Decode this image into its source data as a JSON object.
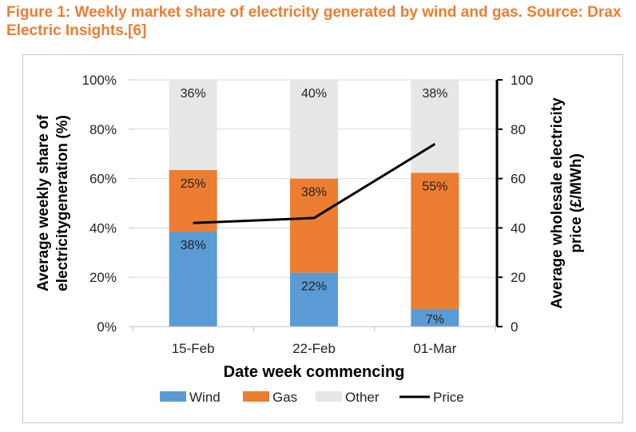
{
  "figure": {
    "title": "Figure 1: Weekly market share of electricity generated by wind and gas. Source: Drax Electric Insights.[6]"
  },
  "colors": {
    "title": "#ED7D31",
    "wind": "#5B9BD5",
    "gas": "#ED7D31",
    "other": "#E7E7E7",
    "price": "#000000",
    "axis": "#000000",
    "grid": "#D9D9D9"
  },
  "chart_data": {
    "type": "bar",
    "stacked": true,
    "categories": [
      "15-Feb",
      "22-Feb",
      "01-Mar"
    ],
    "series": [
      {
        "name": "Wind",
        "values": [
          38.5,
          21.8,
          7.1
        ],
        "labels": [
          "38%",
          "22%",
          "7%"
        ],
        "color": "#5B9BD5"
      },
      {
        "name": "Gas",
        "values": [
          25.0,
          38.2,
          55.2
        ],
        "labels": [
          "25%",
          "38%",
          "55%"
        ],
        "color": "#ED7D31"
      },
      {
        "name": "Other",
        "values": [
          36.5,
          40.0,
          37.7
        ],
        "labels": [
          "36%",
          "40%",
          "38%"
        ],
        "color": "#E7E7E7"
      }
    ],
    "line_series": {
      "name": "Price",
      "values": [
        42,
        44,
        74
      ],
      "axis": "secondary",
      "color": "#000000"
    },
    "xlabel": "Date week commencing",
    "ylabel_lines": [
      "Average weekly  share of",
      "electricitygeneration (%)"
    ],
    "y2label_lines": [
      "Average wholesale electricity",
      "price (£/MWh)"
    ],
    "y_ticks": [
      "0%",
      "20%",
      "40%",
      "60%",
      "80%",
      "100%"
    ],
    "ylim": [
      0,
      100
    ],
    "y2_ticks": [
      "0",
      "20",
      "40",
      "60",
      "80",
      "100"
    ],
    "y2lim": [
      0,
      100
    ],
    "grid": true,
    "legend": {
      "placement": "bottom",
      "entries": [
        "Wind",
        "Gas",
        "Other",
        "Price"
      ]
    }
  }
}
